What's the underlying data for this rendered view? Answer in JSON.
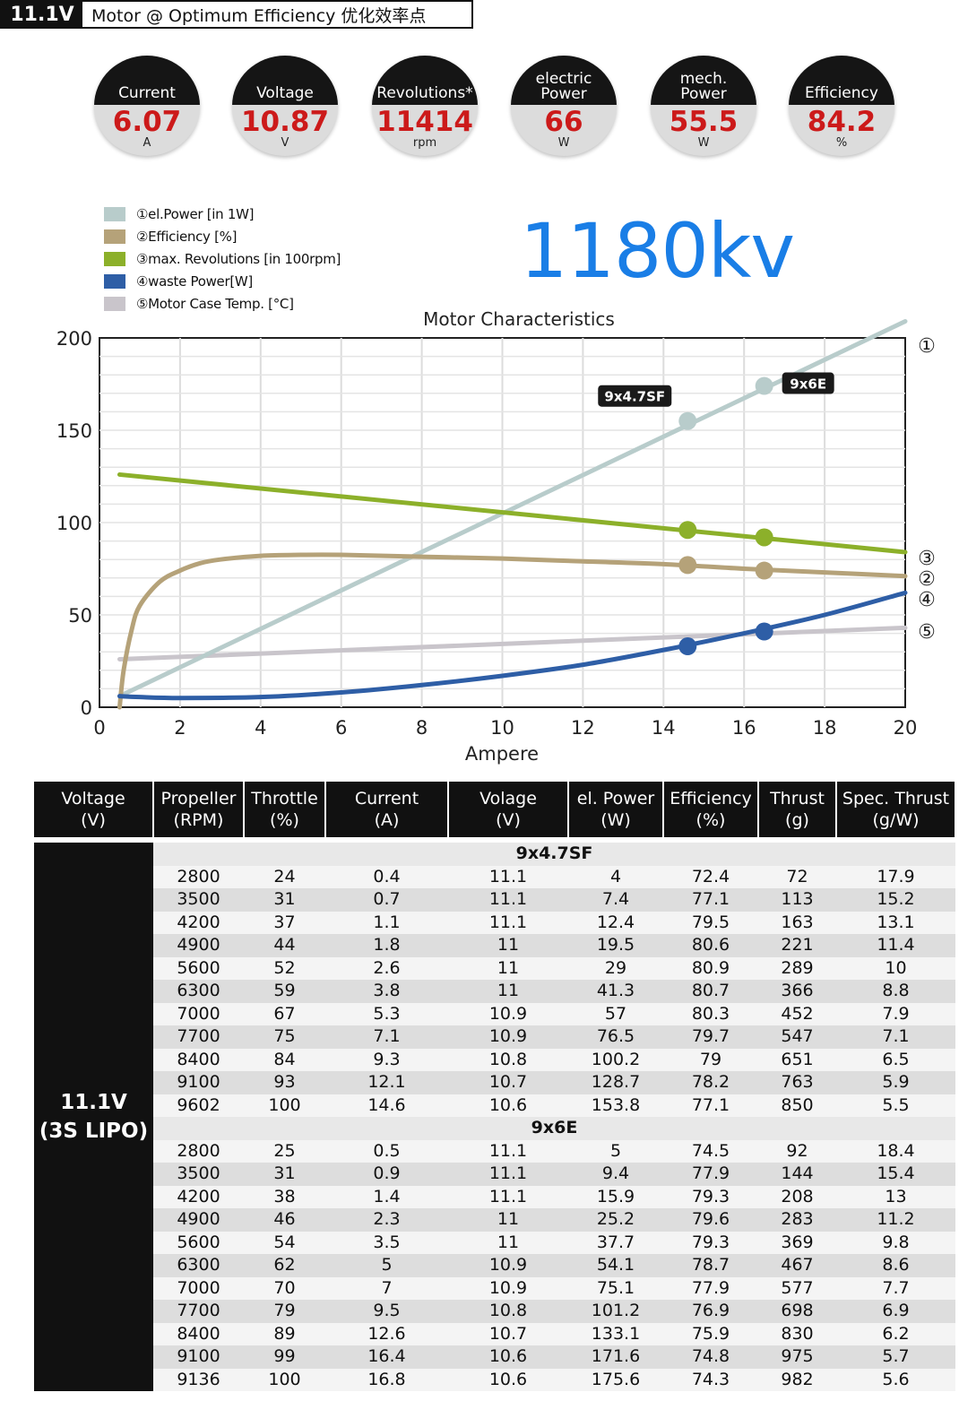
{
  "header": {
    "voltage": "11.1V",
    "title": "Motor @ Optimum Efficiency  优化效率点"
  },
  "gauges": [
    {
      "label": "Current",
      "value": "6.07",
      "unit": "A"
    },
    {
      "label": "Voltage",
      "value": "10.87",
      "unit": "V"
    },
    {
      "label": "Revolutions*",
      "value": "11414",
      "unit": "rpm"
    },
    {
      "label": "electric Power",
      "value": "66",
      "unit": "W"
    },
    {
      "label": "mech. Power",
      "value": "55.5",
      "unit": "W"
    },
    {
      "label": "Efficiency",
      "value": "84.2",
      "unit": "%"
    }
  ],
  "kv_label": "1180kv",
  "chart_data": {
    "type": "line",
    "title": "Motor Characteristics",
    "xlabel": "Ampere",
    "ylabel": "",
    "xlim": [
      0,
      20
    ],
    "ylim": [
      0,
      200
    ],
    "xticks": [
      0,
      2,
      4,
      6,
      8,
      10,
      12,
      14,
      16,
      18,
      20
    ],
    "yticks": [
      0,
      50,
      100,
      150,
      200
    ],
    "grid": true,
    "legend_position": "top-left",
    "series": [
      {
        "name": "①el.Power [in 1W]",
        "marker": "①",
        "color": "#b8cccb",
        "x": [
          0.5,
          20
        ],
        "y": [
          6,
          209
        ]
      },
      {
        "name": "②Efficiency [%]",
        "marker": "②",
        "color": "#b5a279",
        "x": [
          0.5,
          0.6,
          0.8,
          1,
          1.5,
          2,
          2.5,
          3,
          4,
          5,
          6,
          8,
          10,
          12,
          14,
          16,
          18,
          20
        ],
        "y": [
          0,
          20,
          42,
          55,
          68,
          74,
          78,
          80,
          82,
          82.5,
          82.5,
          81.5,
          80.5,
          79,
          77.5,
          75,
          73,
          71
        ]
      },
      {
        "name": "③max. Revolutions [in 100rpm]",
        "marker": "③",
        "color": "#8cb02a",
        "x": [
          0.5,
          20
        ],
        "y": [
          126,
          84
        ]
      },
      {
        "name": "④waste Power[W]",
        "marker": "④",
        "color": "#2e5ea6",
        "x": [
          0.5,
          1,
          2,
          4,
          6,
          8,
          10,
          12,
          14,
          16,
          18,
          20
        ],
        "y": [
          6,
          5.5,
          5,
          5.5,
          8,
          12,
          17,
          23,
          31,
          40,
          50,
          62
        ]
      },
      {
        "name": "⑤Motor Case Temp. [°C]",
        "marker": "⑤",
        "color": "#c9c5cb",
        "x": [
          0.5,
          20
        ],
        "y": [
          26,
          43
        ]
      }
    ],
    "operating_points": [
      {
        "label": "9x4.7SF",
        "x": 14.6,
        "values": {
          "power": 155,
          "revolutions": 96,
          "efficiency": 77,
          "waste": 33
        }
      },
      {
        "label": "9x6E",
        "x": 16.5,
        "values": {
          "power": 174,
          "revolutions": 92,
          "efficiency": 74,
          "waste": 41
        }
      }
    ]
  },
  "table": {
    "headers": [
      "Voltage\n(V)",
      "Propeller\n(RPM)",
      "Throttle\n(%)",
      "Current\n(A)",
      "Volage\n(V)",
      "el. Power\n(W)",
      "Efficiency\n(%)",
      "Thrust\n(g)",
      "Spec. Thrust\n(g/W)"
    ],
    "voltage_label": "11.1V\n(3S LIPO)",
    "groups": [
      {
        "name": "9x4.7SF",
        "rows": [
          [
            "2800",
            "24",
            "0.4",
            "11.1",
            "4",
            "72.4",
            "72",
            "17.9"
          ],
          [
            "3500",
            "31",
            "0.7",
            "11.1",
            "7.4",
            "77.1",
            "113",
            "15.2"
          ],
          [
            "4200",
            "37",
            "1.1",
            "11.1",
            "12.4",
            "79.5",
            "163",
            "13.1"
          ],
          [
            "4900",
            "44",
            "1.8",
            "11",
            "19.5",
            "80.6",
            "221",
            "11.4"
          ],
          [
            "5600",
            "52",
            "2.6",
            "11",
            "29",
            "80.9",
            "289",
            "10"
          ],
          [
            "6300",
            "59",
            "3.8",
            "11",
            "41.3",
            "80.7",
            "366",
            "8.8"
          ],
          [
            "7000",
            "67",
            "5.3",
            "10.9",
            "57",
            "80.3",
            "452",
            "7.9"
          ],
          [
            "7700",
            "75",
            "7.1",
            "10.9",
            "76.5",
            "79.7",
            "547",
            "7.1"
          ],
          [
            "8400",
            "84",
            "9.3",
            "10.8",
            "100.2",
            "79",
            "651",
            "6.5"
          ],
          [
            "9100",
            "93",
            "12.1",
            "10.7",
            "128.7",
            "78.2",
            "763",
            "5.9"
          ],
          [
            "9602",
            "100",
            "14.6",
            "10.6",
            "153.8",
            "77.1",
            "850",
            "5.5"
          ]
        ]
      },
      {
        "name": "9x6E",
        "rows": [
          [
            "2800",
            "25",
            "0.5",
            "11.1",
            "5",
            "74.5",
            "92",
            "18.4"
          ],
          [
            "3500",
            "31",
            "0.9",
            "11.1",
            "9.4",
            "77.9",
            "144",
            "15.4"
          ],
          [
            "4200",
            "38",
            "1.4",
            "11.1",
            "15.9",
            "79.3",
            "208",
            "13"
          ],
          [
            "4900",
            "46",
            "2.3",
            "11",
            "25.2",
            "79.6",
            "283",
            "11.2"
          ],
          [
            "5600",
            "54",
            "3.5",
            "11",
            "37.7",
            "79.3",
            "369",
            "9.8"
          ],
          [
            "6300",
            "62",
            "5",
            "10.9",
            "54.1",
            "78.7",
            "467",
            "8.6"
          ],
          [
            "7000",
            "70",
            "7",
            "10.9",
            "75.1",
            "77.9",
            "577",
            "7.7"
          ],
          [
            "7700",
            "79",
            "9.5",
            "10.8",
            "101.2",
            "76.9",
            "698",
            "6.9"
          ],
          [
            "8400",
            "89",
            "12.6",
            "10.7",
            "133.1",
            "75.9",
            "830",
            "6.2"
          ],
          [
            "9100",
            "99",
            "16.4",
            "10.6",
            "171.6",
            "74.8",
            "975",
            "5.7"
          ],
          [
            "9136",
            "100",
            "16.8",
            "10.6",
            "175.6",
            "74.3",
            "982",
            "5.6"
          ]
        ]
      }
    ]
  }
}
